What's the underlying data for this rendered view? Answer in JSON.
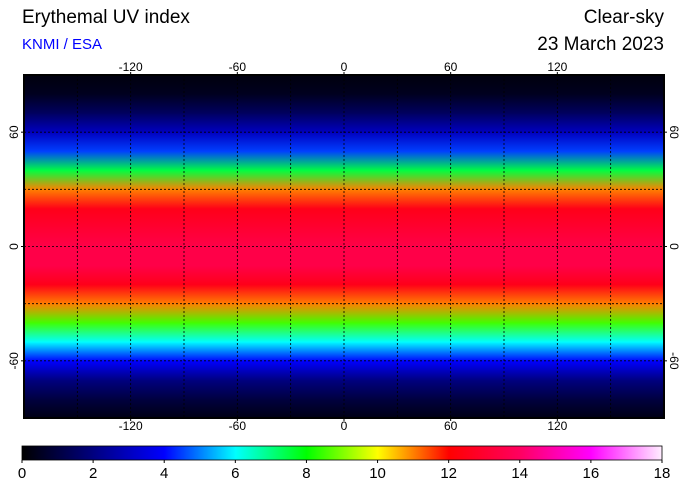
{
  "chart_data": {
    "type": "map",
    "title": "Erythemal UV index",
    "source": "KNMI / ESA",
    "condition": "Clear-sky",
    "date": "23 March 2023",
    "xlim": [
      -180,
      180
    ],
    "ylim": [
      -90,
      90
    ],
    "xticks": [
      -120,
      -60,
      0,
      60,
      120
    ],
    "yticks": [
      -60,
      0,
      60
    ],
    "xgrid": [
      -150,
      -120,
      -90,
      -60,
      -30,
      0,
      30,
      60,
      90,
      120,
      150
    ],
    "ygrid": [
      -60,
      -30,
      0,
      30,
      60
    ],
    "grid": true,
    "zonal_profile": {
      "lat": [
        -90,
        -80,
        -70,
        -60,
        -50,
        -40,
        -30,
        -20,
        -10,
        0,
        10,
        20,
        30,
        40,
        50,
        60,
        70,
        80,
        90
      ],
      "values": [
        0.3,
        1,
        2,
        4,
        6,
        8.5,
        11,
        12.5,
        13.5,
        13.5,
        13,
        12.5,
        11,
        7.5,
        4.5,
        3,
        1.5,
        0.5,
        0.2
      ]
    },
    "colorbar": {
      "lim": [
        0,
        18
      ],
      "ticks": [
        0,
        2,
        4,
        6,
        8,
        10,
        12,
        14,
        16,
        18
      ],
      "colorscale": [
        {
          "value": 0,
          "color": "#000000"
        },
        {
          "value": 2,
          "color": "#000080"
        },
        {
          "value": 4,
          "color": "#0000ff"
        },
        {
          "value": 6,
          "color": "#00ffff"
        },
        {
          "value": 8,
          "color": "#00ff00"
        },
        {
          "value": 10,
          "color": "#ffff00"
        },
        {
          "value": 12,
          "color": "#ff0000"
        },
        {
          "value": 14,
          "color": "#ff0060"
        },
        {
          "value": 16,
          "color": "#ff00ff"
        },
        {
          "value": 18,
          "color": "#fff0ff"
        }
      ]
    }
  }
}
